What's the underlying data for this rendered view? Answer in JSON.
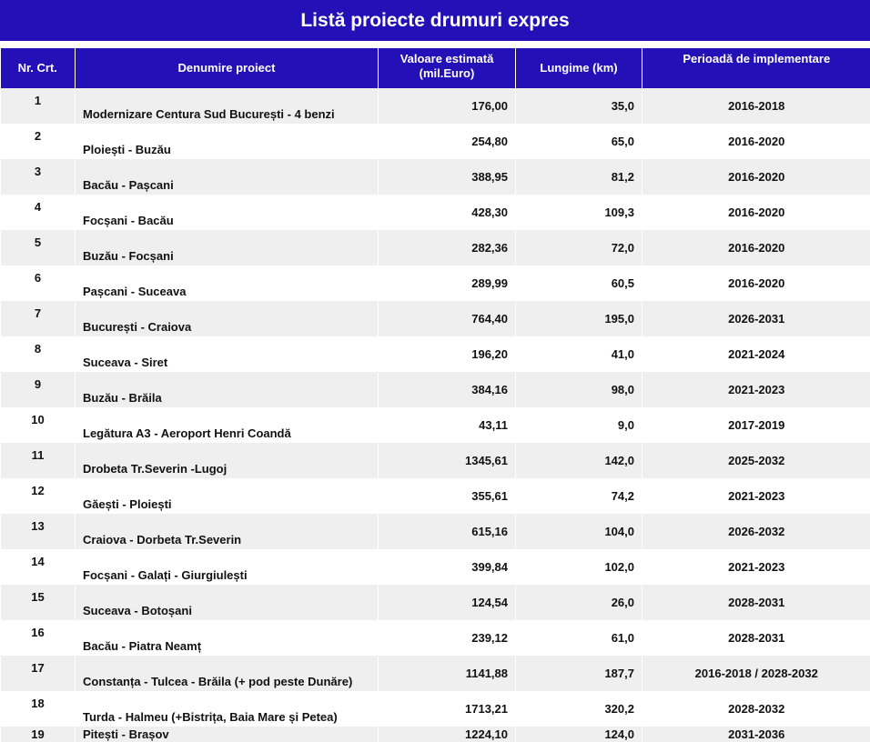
{
  "title": "Listă proiecte drumuri expres",
  "headers": {
    "nr": "Nr. Crt.",
    "name": "Denumire proiect",
    "value_line1": "Valoare estimată",
    "value_line2": "(mil.Euro)",
    "length": "Lungime (km)",
    "period": "Perioadă de implementare"
  },
  "rows": [
    {
      "nr": "1",
      "name": "Modernizare Centura Sud București - 4 benzi",
      "value": "176,00",
      "length": "35,0",
      "period": "2016-2018"
    },
    {
      "nr": "2",
      "name": "Ploiești - Buzău",
      "value": "254,80",
      "length": "65,0",
      "period": "2016-2020"
    },
    {
      "nr": "3",
      "name": "Bacău - Pașcani",
      "value": "388,95",
      "length": "81,2",
      "period": "2016-2020"
    },
    {
      "nr": "4",
      "name": "Focșani - Bacău",
      "value": "428,30",
      "length": "109,3",
      "period": "2016-2020"
    },
    {
      "nr": "5",
      "name": "Buzău - Focșani",
      "value": "282,36",
      "length": "72,0",
      "period": "2016-2020"
    },
    {
      "nr": "6",
      "name": "Pașcani - Suceava",
      "value": "289,99",
      "length": "60,5",
      "period": "2016-2020"
    },
    {
      "nr": "7",
      "name": "București - Craiova",
      "value": "764,40",
      "length": "195,0",
      "period": "2026-2031"
    },
    {
      "nr": "8",
      "name": "Suceava - Siret",
      "value": "196,20",
      "length": "41,0",
      "period": "2021-2024"
    },
    {
      "nr": "9",
      "name": "Buzău - Brăila",
      "value": "384,16",
      "length": "98,0",
      "period": "2021-2023"
    },
    {
      "nr": "10",
      "name": "Legătura A3 - Aeroport Henri Coandă",
      "value": "43,11",
      "length": "9,0",
      "period": "2017-2019"
    },
    {
      "nr": "11",
      "name": "Drobeta Tr.Severin -Lugoj",
      "value": "1345,61",
      "length": "142,0",
      "period": "2025-2032"
    },
    {
      "nr": "12",
      "name": "Găești - Ploiești",
      "value": "355,61",
      "length": "74,2",
      "period": "2021-2023"
    },
    {
      "nr": "13",
      "name": "Craiova - Dorbeta Tr.Severin",
      "value": "615,16",
      "length": "104,0",
      "period": "2026-2032"
    },
    {
      "nr": "14",
      "name": "Focșani - Galați - Giurgiulești",
      "value": "399,84",
      "length": "102,0",
      "period": "2021-2023"
    },
    {
      "nr": "15",
      "name": "Suceava - Botoșani",
      "value": "124,54",
      "length": "26,0",
      "period": "2028-2031"
    },
    {
      "nr": "16",
      "name": "Bacău - Piatra Neamț",
      "value": "239,12",
      "length": "61,0",
      "period": "2028-2031"
    },
    {
      "nr": "17",
      "name": "Constanța - Tulcea - Brăila (+ pod peste Dunăre)",
      "value": "1141,88",
      "length": "187,7",
      "period": "2016-2018 / 2028-2032"
    },
    {
      "nr": "18",
      "name": "Turda - Halmeu (+Bistrița, Baia Mare și Petea)",
      "value": "1713,21",
      "length": "320,2",
      "period": "2028-2032"
    },
    {
      "nr": "19",
      "name": "Pitești - Brașov",
      "value": "1224,10",
      "length": "124,0",
      "period": "2031-2036"
    }
  ]
}
